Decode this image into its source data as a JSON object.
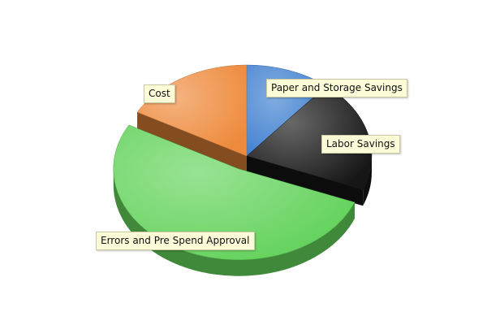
{
  "chart_data": {
    "type": "pie",
    "title": "",
    "slices": [
      {
        "label": "Paper and Storage Savings",
        "value": 11,
        "color": "#3f7fd0"
      },
      {
        "label": "Labor Savings",
        "value": 20,
        "color": "#161616"
      },
      {
        "label": "Errors and Pre Spend Approval",
        "value": 52,
        "color": "#62d25a"
      },
      {
        "label": "Cost",
        "value": 17,
        "color": "#ee8a3c"
      }
    ],
    "exploded_slice": "Errors and Pre Spend Approval",
    "three_d": true,
    "legend": "none"
  }
}
